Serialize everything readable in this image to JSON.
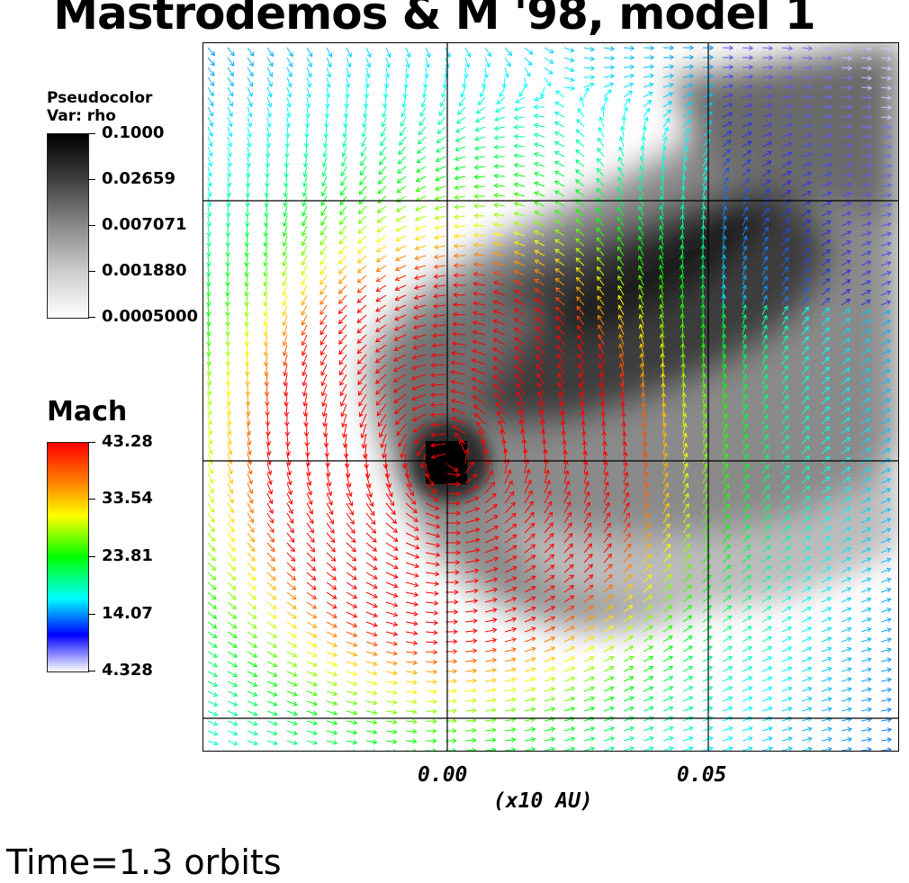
{
  "title": "Mastrodemos & M '98, model 1",
  "time_label": "Time=1.3 orbits",
  "legend_rho": {
    "title_line1": "Pseudocolor",
    "title_line2": "Var: rho",
    "ticks": [
      "0.1000",
      "0.02659",
      "0.007071",
      "0.001880",
      "0.0005000"
    ]
  },
  "legend_mach": {
    "title": "Mach",
    "ticks": [
      "43.28",
      "33.54",
      "23.81",
      "14.07",
      "4.328"
    ]
  },
  "axes": {
    "x_ticks": [
      "0.00",
      "0.05"
    ],
    "x_unit": "(x10 AU)"
  },
  "chart_data": {
    "type": "heatmap",
    "title": "Mastrodemos & M '98, model 1",
    "xlabel": "(x10 AU)",
    "ylabel": "",
    "x_tick_values": [
      0.0,
      0.05
    ],
    "xlim": [
      -0.047,
      0.087
    ],
    "ylim": [
      -0.056,
      0.08
    ],
    "scalar_field": {
      "variable": "rho",
      "colormap": "gray (white to black)",
      "scale": "log",
      "min": 0.0005,
      "max": 0.1,
      "ticks": [
        0.1,
        0.02659,
        0.007071,
        0.00188,
        0.0005
      ]
    },
    "vector_field": {
      "colored_by": "Mach",
      "colormap": "hot-desaturated rainbow (white-blue-cyan-green-yellow-red)",
      "min": 4.328,
      "max": 43.28,
      "ticks": [
        43.28,
        33.54,
        23.81,
        14.07,
        4.328
      ]
    },
    "grid_lines": true,
    "time_orbits": 1.3
  },
  "colors": {
    "vector_low": "#3030e6",
    "vector_high": "#ff0000",
    "grid": "#000000"
  }
}
